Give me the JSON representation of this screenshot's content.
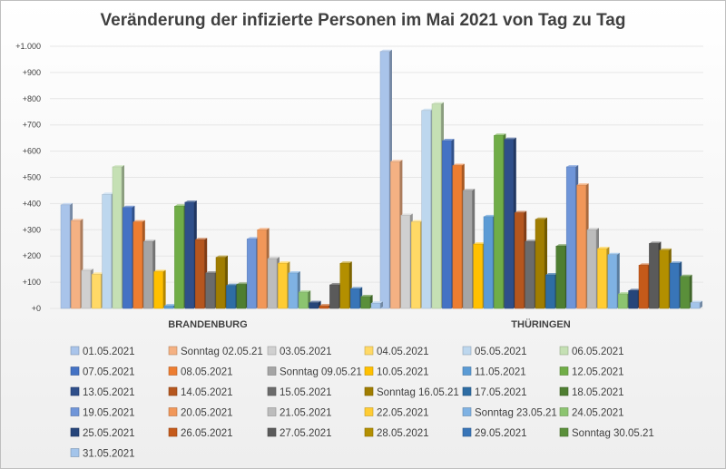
{
  "chart_data": {
    "type": "bar",
    "title": "Veränderung der infizierte Personen im Mai 2021 von Tag zu Tag",
    "categories": [
      "BRANDENBURG",
      "THÜRINGEN"
    ],
    "ylim": [
      0,
      1000
    ],
    "yticks": [
      {
        "value": 0,
        "label": "+0"
      },
      {
        "value": 100,
        "label": "+100"
      },
      {
        "value": 200,
        "label": "+200"
      },
      {
        "value": 300,
        "label": "+300"
      },
      {
        "value": 400,
        "label": "+400"
      },
      {
        "value": 500,
        "label": "+500"
      },
      {
        "value": 600,
        "label": "+600"
      },
      {
        "value": 700,
        "label": "+700"
      },
      {
        "value": 800,
        "label": "+800"
      },
      {
        "value": 900,
        "label": "+900"
      },
      {
        "value": 1000,
        "label": "+1.000"
      }
    ],
    "legend_position": "bottom",
    "series": [
      {
        "name": "01.05.2021",
        "color": "#a9c4ea",
        "values": [
          395,
          980
        ]
      },
      {
        "name": "Sonntag 02.05.21",
        "color": "#f4b183",
        "values": [
          335,
          560
        ]
      },
      {
        "name": "03.05.2021",
        "color": "#d0d0d0",
        "values": [
          145,
          355
        ]
      },
      {
        "name": "04.05.2021",
        "color": "#ffd966",
        "values": [
          130,
          330
        ]
      },
      {
        "name": "05.05.2021",
        "color": "#bdd7ee",
        "values": [
          435,
          755
        ]
      },
      {
        "name": "06.05.2021",
        "color": "#c5e0b4",
        "values": [
          540,
          780
        ]
      },
      {
        "name": "07.05.2021",
        "color": "#4472c4",
        "values": [
          385,
          640
        ]
      },
      {
        "name": "08.05.2021",
        "color": "#ed7d31",
        "values": [
          330,
          545
        ]
      },
      {
        "name": "Sonntag 09.05.21",
        "color": "#a5a5a5",
        "values": [
          255,
          450
        ]
      },
      {
        "name": "10.05.2021",
        "color": "#ffc000",
        "values": [
          140,
          245
        ]
      },
      {
        "name": "11.05.2021",
        "color": "#5b9bd5",
        "values": [
          10,
          350
        ]
      },
      {
        "name": "12.05.2021",
        "color": "#70ad47",
        "values": [
          390,
          660
        ]
      },
      {
        "name": "13.05.2021",
        "color": "#2f4f8a",
        "values": [
          405,
          645
        ]
      },
      {
        "name": "14.05.2021",
        "color": "#b5561e",
        "values": [
          262,
          365
        ]
      },
      {
        "name": "15.05.2021",
        "color": "#6b6b6b",
        "values": [
          135,
          255
        ]
      },
      {
        "name": "Sonntag 16.05.21",
        "color": "#a07d00",
        "values": [
          195,
          340
        ]
      },
      {
        "name": "17.05.2021",
        "color": "#2e6da4",
        "values": [
          88,
          128
        ]
      },
      {
        "name": "18.05.2021",
        "color": "#4e7e31",
        "values": [
          92,
          238
        ]
      },
      {
        "name": "19.05.2021",
        "color": "#6f95d8",
        "values": [
          265,
          540
        ]
      },
      {
        "name": "20.05.2021",
        "color": "#f19759",
        "values": [
          300,
          470
        ]
      },
      {
        "name": "21.05.2021",
        "color": "#bcbcbc",
        "values": [
          190,
          300
        ]
      },
      {
        "name": "22.05.2021",
        "color": "#ffcc33",
        "values": [
          172,
          228
        ]
      },
      {
        "name": "Sonntag 23.05.21",
        "color": "#7fb2e3",
        "values": [
          135,
          205
        ]
      },
      {
        "name": "24.05.2021",
        "color": "#8cc470",
        "values": [
          62,
          55
        ]
      },
      {
        "name": "25.05.2021",
        "color": "#26457a",
        "values": [
          22,
          68
        ]
      },
      {
        "name": "26.05.2021",
        "color": "#c55a1a",
        "values": [
          10,
          165
        ]
      },
      {
        "name": "27.05.2021",
        "color": "#5a5a5a",
        "values": [
          90,
          248
        ]
      },
      {
        "name": "28.05.2021",
        "color": "#b38f00",
        "values": [
          172,
          222
        ]
      },
      {
        "name": "29.05.2021",
        "color": "#3875b8",
        "values": [
          75,
          172
        ]
      },
      {
        "name": "Sonntag 30.05.21",
        "color": "#5a8f3a",
        "values": [
          45,
          122
        ]
      },
      {
        "name": "31.05.2021",
        "color": "#a3c4ea",
        "values": [
          20,
          22
        ]
      }
    ]
  }
}
